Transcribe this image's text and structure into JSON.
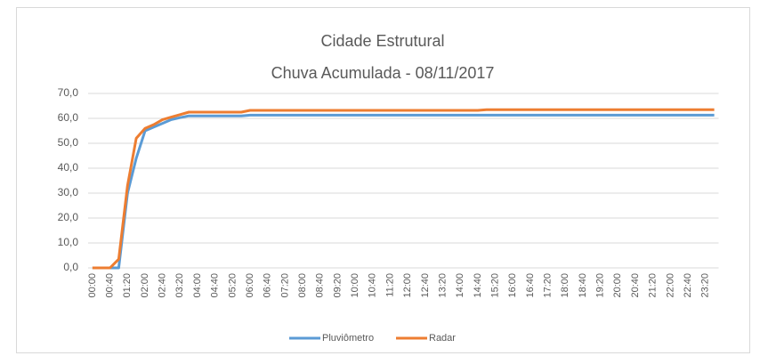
{
  "chart_data": {
    "type": "line",
    "title": "Cidade Estrutural",
    "subtitle": "Chuva Acumulada - 08/11/2017",
    "categories": [
      "00:00",
      null,
      "00:40",
      null,
      "01:20",
      null,
      "02:00",
      null,
      "02:40",
      null,
      "03:20",
      null,
      "04:00",
      null,
      "04:40",
      null,
      "05:20",
      null,
      "06:00",
      null,
      "06:40",
      null,
      "07:20",
      null,
      "08:00",
      null,
      "08:40",
      null,
      "09:20",
      null,
      "10:00",
      null,
      "10:40",
      null,
      "11:20",
      null,
      "12:00",
      null,
      "12:40",
      null,
      "13:20",
      null,
      "14:00",
      null,
      "14:40",
      null,
      "15:20",
      null,
      "16:00",
      null,
      "16:40",
      null,
      "17:20",
      null,
      "18:00",
      null,
      "18:40",
      null,
      "19:20",
      null,
      "20:00",
      null,
      "20:40",
      null,
      "21:20",
      null,
      "22:00",
      null,
      "22:40",
      null,
      "23:20",
      null
    ],
    "series": [
      {
        "name": "Pluviômetro",
        "color": "#5b9bd5",
        "values": [
          0,
          0,
          0,
          0,
          30,
          44,
          55,
          56.5,
          58,
          59.5,
          60.3,
          61,
          61,
          61,
          61,
          61,
          61,
          61,
          61.3,
          61.3,
          61.3,
          61.3,
          61.3,
          61.3,
          61.3,
          61.3,
          61.3,
          61.3,
          61.3,
          61.3,
          61.3,
          61.3,
          61.3,
          61.3,
          61.3,
          61.3,
          61.3,
          61.3,
          61.3,
          61.3,
          61.3,
          61.3,
          61.3,
          61.3,
          61.3,
          61.3,
          61.3,
          61.3,
          61.3,
          61.3,
          61.3,
          61.3,
          61.3,
          61.3,
          61.3,
          61.3,
          61.3,
          61.3,
          61.3,
          61.3,
          61.3,
          61.3,
          61.3,
          61.3,
          61.3,
          61.3,
          61.3,
          61.3,
          61.3,
          61.3,
          61.3,
          61.3
        ]
      },
      {
        "name": "Radar",
        "color": "#ed7d31",
        "values": [
          0,
          0,
          0,
          3.5,
          33,
          52,
          56,
          57.5,
          59.5,
          60.5,
          61.5,
          62.5,
          62.5,
          62.5,
          62.5,
          62.5,
          62.5,
          62.5,
          63.2,
          63.2,
          63.2,
          63.2,
          63.2,
          63.2,
          63.2,
          63.2,
          63.2,
          63.2,
          63.2,
          63.2,
          63.2,
          63.2,
          63.2,
          63.2,
          63.2,
          63.2,
          63.2,
          63.2,
          63.2,
          63.2,
          63.2,
          63.2,
          63.2,
          63.2,
          63.2,
          63.5,
          63.5,
          63.5,
          63.5,
          63.5,
          63.5,
          63.5,
          63.5,
          63.5,
          63.5,
          63.5,
          63.5,
          63.5,
          63.5,
          63.5,
          63.5,
          63.5,
          63.5,
          63.5,
          63.5,
          63.5,
          63.5,
          63.5,
          63.5,
          63.5,
          63.5,
          63.5
        ]
      }
    ],
    "ylim": [
      0,
      70
    ],
    "yticks": [
      {
        "value": 0,
        "label": "0,0"
      },
      {
        "value": 10,
        "label": "10,0"
      },
      {
        "value": 20,
        "label": "20,0"
      },
      {
        "value": 30,
        "label": "30,0"
      },
      {
        "value": 40,
        "label": "40,0"
      },
      {
        "value": 50,
        "label": "50,0"
      },
      {
        "value": 60,
        "label": "60,0"
      },
      {
        "value": 70,
        "label": "70,0"
      }
    ],
    "grid": true,
    "legend": "bottom"
  }
}
